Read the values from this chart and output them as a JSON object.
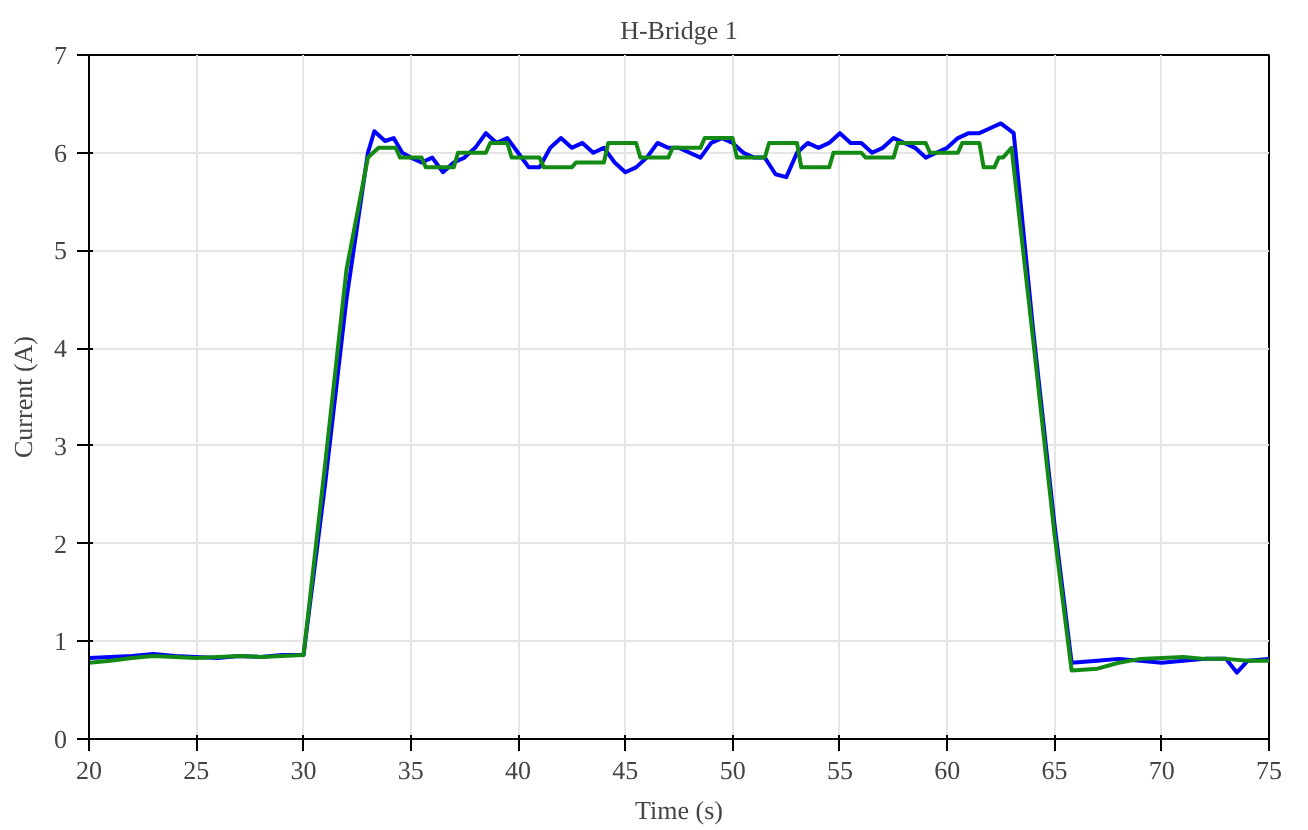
{
  "chart_data": {
    "type": "line",
    "title": "H-Bridge 1",
    "xlabel": "Time (s)",
    "ylabel": "Current (A)",
    "xlim": [
      20,
      75
    ],
    "ylim": [
      0,
      7
    ],
    "xticks": [
      20,
      25,
      30,
      35,
      40,
      45,
      50,
      55,
      60,
      65,
      70,
      75
    ],
    "yticks": [
      0,
      1,
      2,
      3,
      4,
      5,
      6,
      7
    ],
    "grid": true,
    "line_style": "solid",
    "marker": "none",
    "series": [
      {
        "color": "#0000ff",
        "x": [
          20,
          21,
          22,
          23,
          24,
          25,
          26,
          27,
          28,
          29,
          30,
          31,
          32,
          33,
          33.3,
          33.8,
          34.2,
          34.6,
          35,
          35.5,
          36,
          36.5,
          37,
          37.5,
          38,
          38.5,
          39,
          39.5,
          40,
          40.5,
          41,
          41.5,
          42,
          42.5,
          43,
          43.5,
          44,
          44.5,
          45,
          45.5,
          46,
          46.5,
          47,
          47.5,
          48,
          48.5,
          49,
          49.5,
          50,
          50.5,
          51,
          51.5,
          52,
          52.5,
          53,
          53.5,
          54,
          54.5,
          55,
          55.5,
          56,
          56.5,
          57,
          57.5,
          58,
          58.5,
          59,
          59.5,
          60,
          60.5,
          61,
          61.5,
          62,
          62.5,
          63.1,
          64,
          65,
          65.8,
          67,
          68,
          69,
          70,
          71,
          72,
          73,
          73.5,
          74,
          75
        ],
        "values": [
          0.83,
          0.84,
          0.85,
          0.87,
          0.85,
          0.84,
          0.83,
          0.85,
          0.84,
          0.86,
          0.86,
          2.6,
          4.5,
          6.0,
          6.22,
          6.12,
          6.15,
          6.0,
          5.95,
          5.9,
          5.95,
          5.8,
          5.9,
          5.95,
          6.05,
          6.2,
          6.1,
          6.15,
          6.0,
          5.85,
          5.85,
          6.05,
          6.15,
          6.05,
          6.1,
          6.0,
          6.05,
          5.9,
          5.8,
          5.85,
          5.95,
          6.1,
          6.05,
          6.05,
          6.0,
          5.95,
          6.1,
          6.15,
          6.1,
          6.0,
          5.95,
          5.95,
          5.78,
          5.75,
          6.0,
          6.1,
          6.05,
          6.1,
          6.2,
          6.1,
          6.1,
          6.0,
          6.05,
          6.15,
          6.1,
          6.05,
          5.95,
          6.0,
          6.05,
          6.15,
          6.2,
          6.2,
          6.25,
          6.3,
          6.2,
          4.2,
          2.2,
          0.78,
          0.8,
          0.82,
          0.8,
          0.78,
          0.8,
          0.82,
          0.82,
          0.68,
          0.8,
          0.82
        ]
      },
      {
        "color": "#138a13",
        "x": [
          20,
          21,
          22,
          23,
          24,
          25,
          26,
          27,
          28,
          29,
          30,
          31,
          32,
          33,
          33.5,
          34.3,
          34.5,
          35.5,
          35.7,
          37,
          37.2,
          38.5,
          38.7,
          39.5,
          39.7,
          41,
          41.2,
          42.5,
          42.7,
          44,
          44.2,
          45.5,
          45.7,
          47,
          47.2,
          48.5,
          48.7,
          50,
          50.2,
          51.5,
          51.7,
          53,
          53.2,
          54.5,
          54.7,
          56,
          56.2,
          57.5,
          57.7,
          59,
          59.2,
          60.5,
          60.7,
          61.5,
          61.7,
          62.2,
          62.4,
          62.6,
          63,
          64,
          65,
          65.8,
          67,
          68,
          69,
          70,
          71,
          72,
          73,
          74,
          75
        ],
        "values": [
          0.78,
          0.8,
          0.83,
          0.85,
          0.84,
          0.83,
          0.84,
          0.85,
          0.84,
          0.85,
          0.86,
          2.8,
          4.8,
          5.95,
          6.05,
          6.05,
          5.95,
          5.95,
          5.85,
          5.85,
          6.0,
          6.0,
          6.1,
          6.1,
          5.95,
          5.95,
          5.85,
          5.85,
          5.9,
          5.9,
          6.1,
          6.1,
          5.95,
          5.95,
          6.05,
          6.05,
          6.15,
          6.15,
          5.95,
          5.95,
          6.1,
          6.1,
          5.85,
          5.85,
          6.0,
          6.0,
          5.95,
          5.95,
          6.1,
          6.1,
          6.0,
          6.0,
          6.1,
          6.1,
          5.85,
          5.85,
          5.95,
          5.95,
          6.05,
          4.1,
          2.1,
          0.7,
          0.72,
          0.78,
          0.82,
          0.83,
          0.84,
          0.82,
          0.82,
          0.8,
          0.8
        ]
      }
    ]
  }
}
